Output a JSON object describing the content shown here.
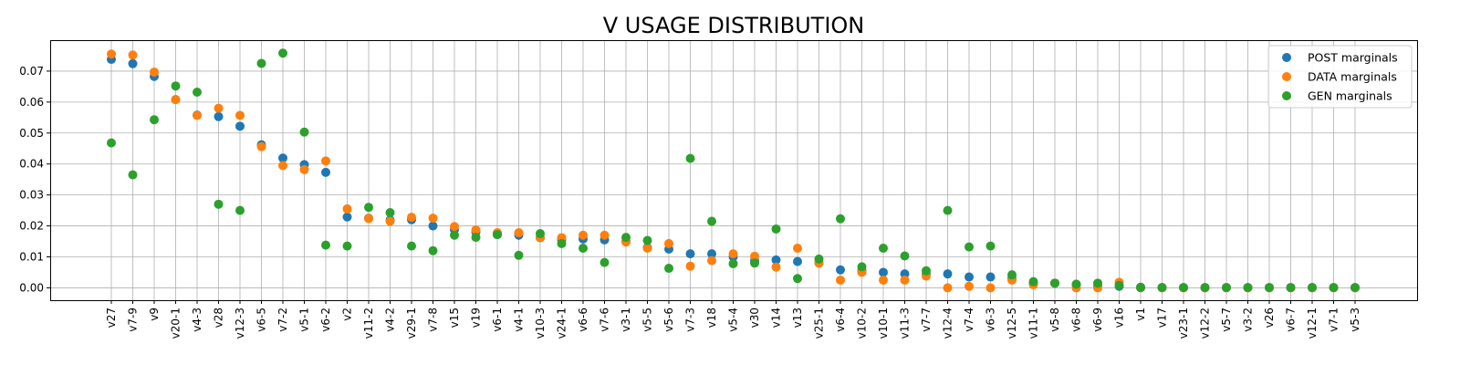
{
  "chart_data": {
    "type": "scatter",
    "title": "V USAGE DISTRIBUTION",
    "xlabel": "",
    "ylabel": "",
    "ylim": [
      -0.004,
      0.08
    ],
    "yticks": [
      "0.00",
      "0.01",
      "0.02",
      "0.03",
      "0.04",
      "0.05",
      "0.06",
      "0.07"
    ],
    "grid": true,
    "legend_position": "top-right",
    "categories": [
      "v27",
      "v7-9",
      "v9",
      "v20-1",
      "v4-3",
      "v28",
      "v12-3",
      "v6-5",
      "v7-2",
      "v5-1",
      "v6-2",
      "v2",
      "v11-2",
      "v4-2",
      "v29-1",
      "v7-8",
      "v15",
      "v19",
      "v6-1",
      "v4-1",
      "v10-3",
      "v24-1",
      "v6-6",
      "v7-6",
      "v3-1",
      "v5-5",
      "v5-6",
      "v7-3",
      "v18",
      "v5-4",
      "v30",
      "v14",
      "v13",
      "v25-1",
      "v6-4",
      "v10-2",
      "v10-1",
      "v11-3",
      "v7-7",
      "v12-4",
      "v7-4",
      "v6-3",
      "v12-5",
      "v11-1",
      "v5-8",
      "v6-8",
      "v6-9",
      "v16",
      "v1",
      "v17",
      "v23-1",
      "v12-2",
      "v5-7",
      "v3-2",
      "v26",
      "v6-7",
      "v12-1",
      "v7-1",
      "v5-3"
    ],
    "series": [
      {
        "name": "POST marginals",
        "color": "#1f77b4",
        "values": [
          0.0738,
          0.0724,
          0.0683,
          0.0608,
          0.0558,
          0.0553,
          0.0522,
          0.0462,
          0.0419,
          0.0398,
          0.0373,
          0.0229,
          0.0225,
          0.0219,
          0.022,
          0.02,
          0.0188,
          0.018,
          0.0172,
          0.017,
          0.0162,
          0.0155,
          0.0158,
          0.0155,
          0.015,
          0.013,
          0.0125,
          0.011,
          0.011,
          0.01,
          0.0088,
          0.009,
          0.0085,
          0.008,
          0.0058,
          0.0055,
          0.005,
          0.0045,
          0.0045,
          0.0045,
          0.0035,
          0.0035,
          0.003,
          0.0015,
          0.0015,
          0.001,
          0.0005,
          0.0005,
          0.0002,
          0.0001,
          0.0001,
          0.0001,
          0.0001,
          0.0001,
          0.0001,
          0.0001,
          0.0001,
          0.0001,
          0.0001
        ]
      },
      {
        "name": "DATA marginals",
        "color": "#ff7f0e",
        "values": [
          0.0755,
          0.0752,
          0.0697,
          0.0608,
          0.0557,
          0.058,
          0.0557,
          0.0456,
          0.0395,
          0.0382,
          0.041,
          0.0255,
          0.0224,
          0.0215,
          0.0228,
          0.0225,
          0.0198,
          0.0187,
          0.0178,
          0.0178,
          0.0162,
          0.0162,
          0.017,
          0.017,
          0.0148,
          0.0128,
          0.0143,
          0.007,
          0.0088,
          0.011,
          0.0102,
          0.0067,
          0.0128,
          0.008,
          0.0025,
          0.005,
          0.0025,
          0.0025,
          0.0038,
          0.0,
          0.0005,
          0.0,
          0.0025,
          0.001,
          0.0015,
          0.0,
          0.0,
          0.0018,
          0.0,
          0.0,
          0.0,
          0.0,
          0.0,
          0.0,
          0.0,
          0.0,
          0.0,
          0.0,
          0.0
        ]
      },
      {
        "name": "GEN marginals",
        "color": "#2ca02c",
        "values": [
          0.0468,
          0.0365,
          0.0543,
          0.0652,
          0.0632,
          0.027,
          0.025,
          0.0725,
          0.0758,
          0.0503,
          0.0138,
          0.0135,
          0.026,
          0.0243,
          0.0135,
          0.012,
          0.017,
          0.0163,
          0.0172,
          0.0105,
          0.0175,
          0.0143,
          0.0128,
          0.0082,
          0.0163,
          0.0153,
          0.0063,
          0.0418,
          0.0215,
          0.0078,
          0.008,
          0.019,
          0.003,
          0.0093,
          0.0223,
          0.0068,
          0.0128,
          0.0103,
          0.0055,
          0.025,
          0.0132,
          0.0135,
          0.0042,
          0.002,
          0.0015,
          0.0012,
          0.0015,
          0.0008,
          0.0001,
          0.0001,
          0.0001,
          0.0001,
          0.0001,
          0.0001,
          0.0001,
          0.0001,
          0.0001,
          0.0001,
          0.0001
        ]
      }
    ]
  }
}
